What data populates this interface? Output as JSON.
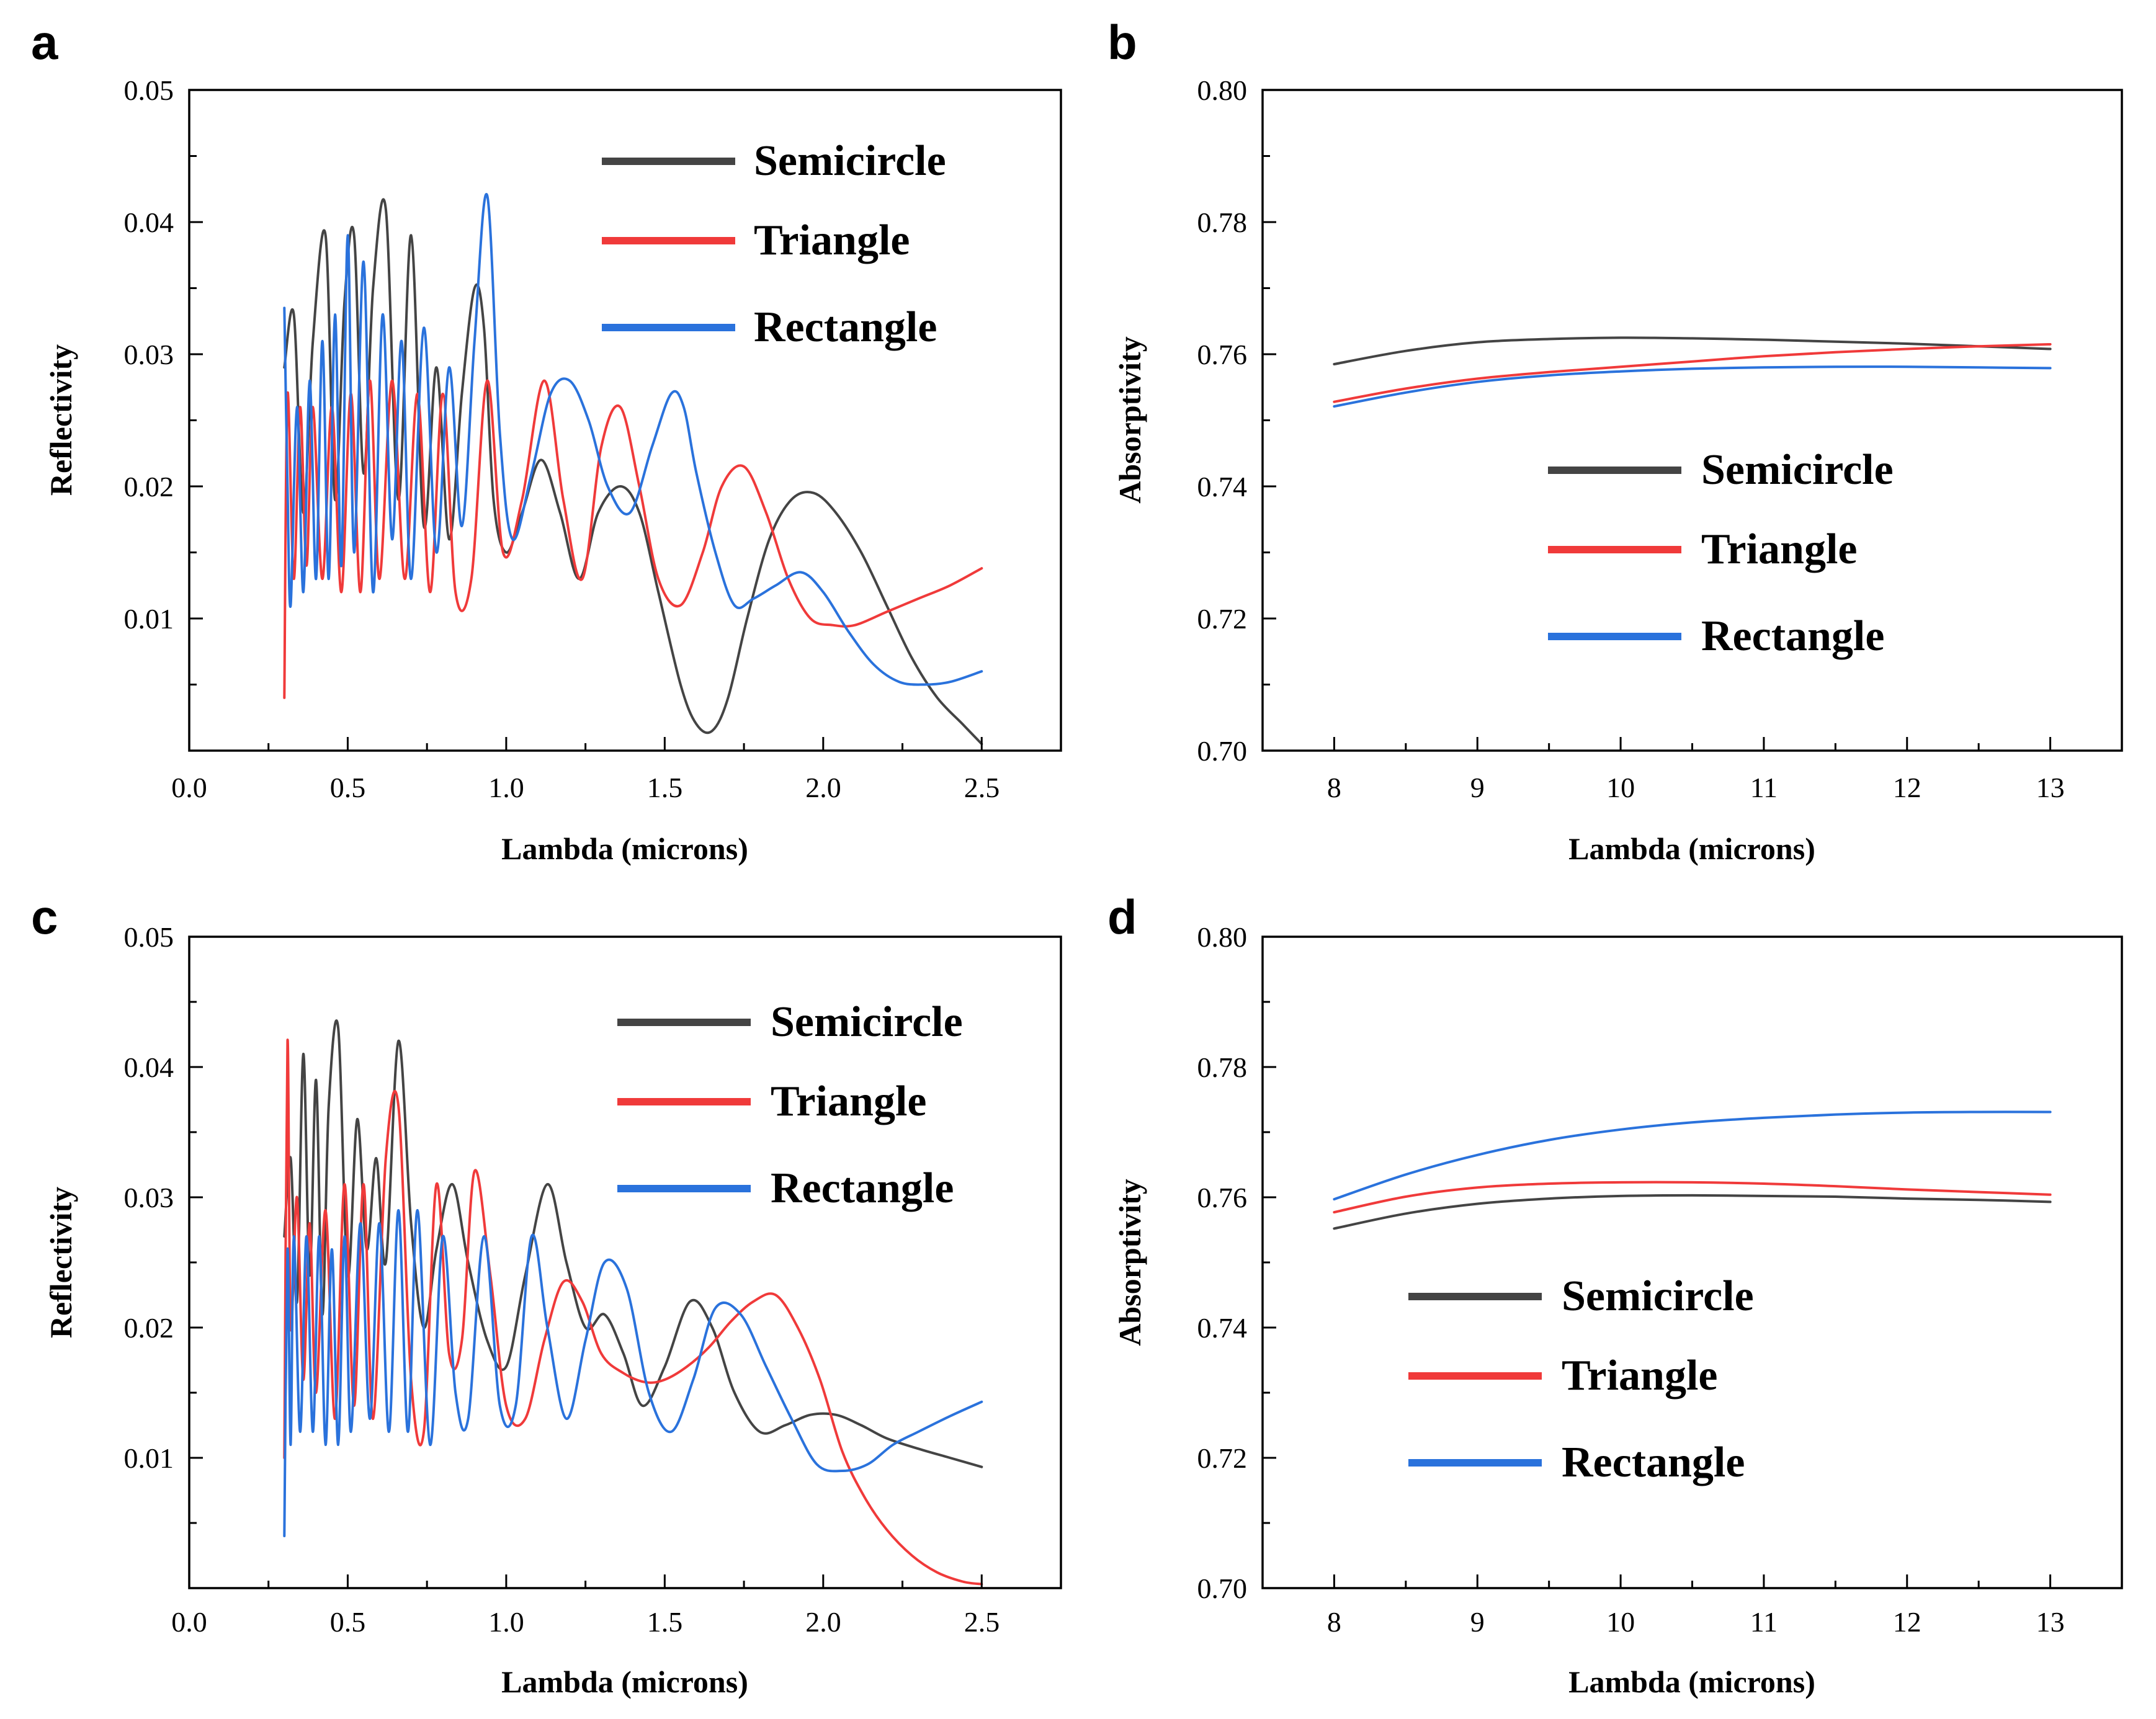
{
  "figure": {
    "colors": {
      "semicircle": "#444444",
      "triangle": "#f03a3a",
      "rectangle": "#2a72dc",
      "axis": "#000000"
    }
  },
  "chart_data": [
    {
      "id": "a",
      "panel_label": "a",
      "type": "line",
      "xlabel": "Lambda (microns)",
      "ylabel": "Reflectivity",
      "xlim": [
        0.0,
        2.75
      ],
      "ylim": [
        0.0,
        0.05
      ],
      "xticks": [
        0.0,
        0.5,
        1.0,
        1.5,
        2.0,
        2.5
      ],
      "xtick_labels": [
        "0.0",
        "0.5",
        "1.0",
        "1.5",
        "2.0",
        "2.5"
      ],
      "yticks": [
        0.01,
        0.02,
        0.03,
        0.04,
        0.05
      ],
      "ytick_labels": [
        "0.01",
        "0.02",
        "0.03",
        "0.04",
        "0.05"
      ],
      "legend_position": "top-right",
      "series": [
        {
          "name": "Semicircle",
          "color": "#444444",
          "x": [
            0.3,
            0.33,
            0.36,
            0.39,
            0.43,
            0.46,
            0.49,
            0.52,
            0.55,
            0.58,
            0.62,
            0.66,
            0.7,
            0.74,
            0.78,
            0.82,
            0.86,
            0.9,
            0.93,
            0.96,
            1.0,
            1.05,
            1.11,
            1.17,
            1.23,
            1.29,
            1.36,
            1.42,
            1.48,
            1.55,
            1.6,
            1.65,
            1.7,
            1.76,
            1.83,
            1.9,
            1.97,
            2.04,
            2.12,
            2.2,
            2.28,
            2.36,
            2.44,
            2.5
          ],
          "y": [
            0.029,
            0.033,
            0.018,
            0.031,
            0.039,
            0.019,
            0.034,
            0.039,
            0.021,
            0.035,
            0.041,
            0.019,
            0.039,
            0.017,
            0.029,
            0.016,
            0.027,
            0.035,
            0.032,
            0.019,
            0.015,
            0.018,
            0.022,
            0.018,
            0.013,
            0.018,
            0.02,
            0.018,
            0.012,
            0.005,
            0.002,
            0.0015,
            0.004,
            0.01,
            0.016,
            0.019,
            0.0195,
            0.018,
            0.015,
            0.011,
            0.007,
            0.004,
            0.002,
            0.0005
          ]
        },
        {
          "name": "Triangle",
          "color": "#f03a3a",
          "x": [
            0.3,
            0.31,
            0.33,
            0.35,
            0.37,
            0.39,
            0.42,
            0.45,
            0.48,
            0.51,
            0.54,
            0.57,
            0.6,
            0.64,
            0.68,
            0.72,
            0.76,
            0.8,
            0.84,
            0.89,
            0.94,
            0.99,
            1.05,
            1.12,
            1.18,
            1.24,
            1.3,
            1.36,
            1.42,
            1.48,
            1.55,
            1.62,
            1.68,
            1.75,
            1.82,
            1.89,
            1.96,
            2.03,
            2.1,
            2.2,
            2.3,
            2.4,
            2.5
          ],
          "y": [
            0.004,
            0.027,
            0.013,
            0.026,
            0.014,
            0.026,
            0.013,
            0.026,
            0.012,
            0.027,
            0.012,
            0.028,
            0.013,
            0.028,
            0.013,
            0.027,
            0.012,
            0.027,
            0.012,
            0.013,
            0.028,
            0.015,
            0.019,
            0.028,
            0.019,
            0.013,
            0.023,
            0.026,
            0.02,
            0.013,
            0.011,
            0.015,
            0.02,
            0.0215,
            0.018,
            0.013,
            0.01,
            0.0095,
            0.0095,
            0.0105,
            0.0115,
            0.0125,
            0.0138
          ]
        },
        {
          "name": "Rectangle",
          "color": "#2a72dc",
          "x": [
            0.3,
            0.31,
            0.32,
            0.34,
            0.36,
            0.38,
            0.4,
            0.42,
            0.44,
            0.46,
            0.48,
            0.5,
            0.52,
            0.55,
            0.58,
            0.61,
            0.64,
            0.67,
            0.7,
            0.74,
            0.78,
            0.82,
            0.86,
            0.9,
            0.94,
            0.98,
            1.02,
            1.08,
            1.14,
            1.2,
            1.26,
            1.32,
            1.39,
            1.46,
            1.52,
            1.56,
            1.6,
            1.66,
            1.72,
            1.78,
            1.85,
            1.93,
            2.0,
            2.08,
            2.16,
            2.24,
            2.32,
            2.4,
            2.5
          ],
          "y": [
            0.0335,
            0.02,
            0.011,
            0.026,
            0.012,
            0.028,
            0.013,
            0.031,
            0.013,
            0.033,
            0.014,
            0.039,
            0.015,
            0.037,
            0.012,
            0.033,
            0.016,
            0.031,
            0.013,
            0.032,
            0.015,
            0.029,
            0.017,
            0.031,
            0.042,
            0.024,
            0.016,
            0.021,
            0.027,
            0.028,
            0.025,
            0.02,
            0.018,
            0.023,
            0.027,
            0.026,
            0.021,
            0.015,
            0.011,
            0.0115,
            0.0125,
            0.0135,
            0.012,
            0.009,
            0.0065,
            0.0052,
            0.005,
            0.0052,
            0.006
          ]
        }
      ]
    },
    {
      "id": "b",
      "panel_label": "b",
      "type": "line",
      "xlabel": "Lambda (microns)",
      "ylabel": "Absorptivity",
      "xlim": [
        7.5,
        13.5
      ],
      "ylim": [
        0.7,
        0.8
      ],
      "xticks": [
        8,
        9,
        10,
        11,
        12,
        13
      ],
      "xtick_labels": [
        "8",
        "9",
        "10",
        "11",
        "12",
        "13"
      ],
      "yticks": [
        0.7,
        0.72,
        0.74,
        0.76,
        0.78,
        0.8
      ],
      "ytick_labels": [
        "0.70",
        "0.72",
        "0.74",
        "0.76",
        "0.78",
        "0.80"
      ],
      "legend_position": "bottom-center",
      "series": [
        {
          "name": "Semicircle",
          "color": "#444444",
          "x": [
            8,
            8.5,
            9,
            9.5,
            10,
            10.5,
            11,
            11.5,
            12,
            12.5,
            13
          ],
          "y": [
            0.7585,
            0.7605,
            0.7618,
            0.7623,
            0.7625,
            0.7624,
            0.7622,
            0.7619,
            0.7616,
            0.7612,
            0.7608
          ]
        },
        {
          "name": "Triangle",
          "color": "#f03a3a",
          "x": [
            8,
            8.5,
            9,
            9.5,
            10,
            10.5,
            11,
            11.5,
            12,
            12.5,
            13
          ],
          "y": [
            0.7528,
            0.7548,
            0.7563,
            0.7573,
            0.7581,
            0.7589,
            0.7597,
            0.7603,
            0.7608,
            0.7612,
            0.7615
          ]
        },
        {
          "name": "Rectangle",
          "color": "#2a72dc",
          "x": [
            8,
            8.5,
            9,
            9.5,
            10,
            10.5,
            11,
            11.5,
            12,
            12.5,
            13
          ],
          "y": [
            0.7521,
            0.7542,
            0.7558,
            0.7568,
            0.7574,
            0.7578,
            0.758,
            0.7581,
            0.7581,
            0.758,
            0.7579
          ]
        }
      ]
    },
    {
      "id": "c",
      "panel_label": "c",
      "type": "line",
      "xlabel": "Lambda (microns)",
      "ylabel": "Reflectivity",
      "xlim": [
        0.0,
        2.75
      ],
      "ylim": [
        0.0,
        0.05
      ],
      "xticks": [
        0.0,
        0.5,
        1.0,
        1.5,
        2.0,
        2.5
      ],
      "xtick_labels": [
        "0.0",
        "0.5",
        "1.0",
        "1.5",
        "2.0",
        "2.5"
      ],
      "yticks": [
        0.01,
        0.02,
        0.03,
        0.04,
        0.05
      ],
      "ytick_labels": [
        "0.01",
        "0.02",
        "0.03",
        "0.04",
        "0.05"
      ],
      "legend_position": "top-right",
      "series": [
        {
          "name": "Semicircle",
          "color": "#444444",
          "x": [
            0.3,
            0.32,
            0.34,
            0.36,
            0.38,
            0.4,
            0.42,
            0.44,
            0.47,
            0.5,
            0.53,
            0.56,
            0.59,
            0.62,
            0.66,
            0.7,
            0.74,
            0.78,
            0.83,
            0.88,
            0.94,
            1.0,
            1.06,
            1.13,
            1.19,
            1.25,
            1.31,
            1.37,
            1.43,
            1.5,
            1.58,
            1.65,
            1.72,
            1.8,
            1.88,
            1.96,
            2.04,
            2.12,
            2.2,
            2.3,
            2.4,
            2.5
          ],
          "y": [
            0.027,
            0.033,
            0.022,
            0.041,
            0.024,
            0.039,
            0.021,
            0.037,
            0.043,
            0.024,
            0.036,
            0.026,
            0.033,
            0.025,
            0.042,
            0.028,
            0.02,
            0.026,
            0.031,
            0.025,
            0.019,
            0.017,
            0.024,
            0.031,
            0.025,
            0.02,
            0.021,
            0.018,
            0.014,
            0.017,
            0.022,
            0.02,
            0.015,
            0.012,
            0.0125,
            0.0133,
            0.0133,
            0.0125,
            0.0115,
            0.0107,
            0.01,
            0.0093
          ]
        },
        {
          "name": "Triangle",
          "color": "#f03a3a",
          "x": [
            0.3,
            0.31,
            0.32,
            0.34,
            0.36,
            0.38,
            0.4,
            0.43,
            0.46,
            0.49,
            0.52,
            0.55,
            0.58,
            0.62,
            0.66,
            0.7,
            0.74,
            0.78,
            0.82,
            0.86,
            0.9,
            0.95,
            1.0,
            1.06,
            1.12,
            1.18,
            1.24,
            1.3,
            1.37,
            1.44,
            1.5,
            1.57,
            1.64,
            1.71,
            1.78,
            1.85,
            1.92,
            1.99,
            2.06,
            2.13,
            2.2,
            2.28,
            2.36,
            2.44,
            2.5
          ],
          "y": [
            0.01,
            0.042,
            0.02,
            0.03,
            0.016,
            0.028,
            0.015,
            0.029,
            0.013,
            0.031,
            0.014,
            0.031,
            0.013,
            0.033,
            0.037,
            0.016,
            0.012,
            0.031,
            0.018,
            0.019,
            0.032,
            0.024,
            0.014,
            0.013,
            0.019,
            0.0235,
            0.022,
            0.018,
            0.0165,
            0.0158,
            0.016,
            0.017,
            0.0185,
            0.0205,
            0.022,
            0.0225,
            0.02,
            0.016,
            0.0105,
            0.007,
            0.0045,
            0.0025,
            0.0012,
            0.0005,
            0.0003
          ]
        },
        {
          "name": "Rectangle",
          "color": "#2a72dc",
          "x": [
            0.3,
            0.31,
            0.32,
            0.33,
            0.35,
            0.37,
            0.39,
            0.41,
            0.43,
            0.45,
            0.47,
            0.49,
            0.51,
            0.54,
            0.57,
            0.6,
            0.63,
            0.66,
            0.69,
            0.72,
            0.76,
            0.8,
            0.84,
            0.88,
            0.93,
            0.98,
            1.03,
            1.08,
            1.13,
            1.19,
            1.25,
            1.31,
            1.38,
            1.45,
            1.52,
            1.59,
            1.66,
            1.74,
            1.82,
            1.9,
            1.98,
            2.06,
            2.14,
            2.22,
            2.3,
            2.4,
            2.5
          ],
          "y": [
            0.004,
            0.026,
            0.011,
            0.027,
            0.012,
            0.027,
            0.012,
            0.027,
            0.011,
            0.026,
            0.011,
            0.027,
            0.012,
            0.028,
            0.013,
            0.028,
            0.012,
            0.029,
            0.012,
            0.029,
            0.011,
            0.027,
            0.015,
            0.013,
            0.027,
            0.014,
            0.014,
            0.027,
            0.02,
            0.013,
            0.019,
            0.025,
            0.023,
            0.015,
            0.012,
            0.016,
            0.0215,
            0.021,
            0.017,
            0.013,
            0.0095,
            0.009,
            0.0095,
            0.011,
            0.012,
            0.0132,
            0.0143
          ]
        }
      ]
    },
    {
      "id": "d",
      "panel_label": "d",
      "type": "line",
      "xlabel": "Lambda (microns)",
      "ylabel": "Absorptivity",
      "xlim": [
        7.5,
        13.5
      ],
      "ylim": [
        0.7,
        0.8
      ],
      "xticks": [
        8,
        9,
        10,
        11,
        12,
        13
      ],
      "xtick_labels": [
        "8",
        "9",
        "10",
        "11",
        "12",
        "13"
      ],
      "yticks": [
        0.7,
        0.72,
        0.74,
        0.76,
        0.78,
        0.8
      ],
      "ytick_labels": [
        "0.70",
        "0.72",
        "0.74",
        "0.76",
        "0.78",
        "0.80"
      ],
      "legend_position": "bottom-left",
      "series": [
        {
          "name": "Semicircle",
          "color": "#444444",
          "x": [
            8,
            8.5,
            9,
            9.5,
            10,
            10.5,
            11,
            11.5,
            12,
            12.5,
            13
          ],
          "y": [
            0.7552,
            0.7575,
            0.759,
            0.7598,
            0.7602,
            0.7603,
            0.7602,
            0.7601,
            0.7598,
            0.7596,
            0.7593
          ]
        },
        {
          "name": "Triangle",
          "color": "#f03a3a",
          "x": [
            8,
            8.5,
            9,
            9.5,
            10,
            10.5,
            11,
            11.5,
            12,
            12.5,
            13
          ],
          "y": [
            0.7577,
            0.7601,
            0.7615,
            0.7621,
            0.7623,
            0.7623,
            0.7621,
            0.7617,
            0.7612,
            0.7608,
            0.7604
          ]
        },
        {
          "name": "Rectangle",
          "color": "#2a72dc",
          "x": [
            8,
            8.5,
            9,
            9.5,
            10,
            10.5,
            11,
            11.5,
            12,
            12.5,
            13
          ],
          "y": [
            0.7597,
            0.7635,
            0.7665,
            0.7688,
            0.7704,
            0.7715,
            0.7722,
            0.7727,
            0.773,
            0.7731,
            0.7731
          ]
        }
      ]
    }
  ]
}
